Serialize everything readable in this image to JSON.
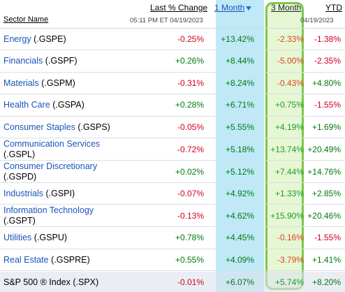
{
  "header": {
    "sector_name": "Sector Name",
    "last_pct_change": "Last % Change",
    "one_month": "1 Month",
    "three_month": "3 Month",
    "ytd": "YTD",
    "last_timestamp": "05:11 PM ET 04/19/2023",
    "ytd_date": "04/19/2023"
  },
  "colors": {
    "negative": "#d1001c",
    "positive": "#007a12",
    "one_month_highlight": "#bfe9f7",
    "three_month_highlight_border": "#7cc74e"
  },
  "rows": [
    {
      "name": "Energy",
      "ticker": "(.GSPE)",
      "last": "-0.25%",
      "m1": "+13.42%",
      "m3": "-2.33%",
      "ytd": "-1.38%"
    },
    {
      "name": "Financials",
      "ticker": "(.GSPF)",
      "last": "+0.26%",
      "m1": "+8.44%",
      "m3": "-5.00%",
      "ytd": "-2.35%"
    },
    {
      "name": "Materials",
      "ticker": "(.GSPM)",
      "last": "-0.31%",
      "m1": "+8.24%",
      "m3": "-0.43%",
      "ytd": "+4.80%"
    },
    {
      "name": "Health Care",
      "ticker": "(.GSPA)",
      "last": "+0.28%",
      "m1": "+6.71%",
      "m3": "+0.75%",
      "ytd": "-1.55%"
    },
    {
      "name": "Consumer Staples",
      "ticker": "(.GSPS)",
      "last": "-0.05%",
      "m1": "+5.55%",
      "m3": "+4.19%",
      "ytd": "+1.69%"
    },
    {
      "name": "Communication Services",
      "ticker": "(.GSPL)",
      "last": "-0.72%",
      "m1": "+5.18%",
      "m3": "+13.74%",
      "ytd": "+20.49%"
    },
    {
      "name": "Consumer Discretionary",
      "ticker": "(.GSPD)",
      "last": "+0.02%",
      "m1": "+5.12%",
      "m3": "+7.44%",
      "ytd": "+14.76%"
    },
    {
      "name": "Industrials",
      "ticker": "(.GSPI)",
      "last": "-0.07%",
      "m1": "+4.92%",
      "m3": "+1.33%",
      "ytd": "+2.85%"
    },
    {
      "name": "Information Technology",
      "ticker": "(.GSPT)",
      "last": "-0.13%",
      "m1": "+4.62%",
      "m3": "+15.90%",
      "ytd": "+20.46%"
    },
    {
      "name": "Utilities",
      "ticker": "(.GSPU)",
      "last": "+0.78%",
      "m1": "+4.45%",
      "m3": "-0.16%",
      "ytd": "-1.55%"
    },
    {
      "name": "Real Estate",
      "ticker": "(.GSPRE)",
      "last": "+0.55%",
      "m1": "+4.09%",
      "m3": "-3.79%",
      "ytd": "+1.41%"
    }
  ],
  "index_row": {
    "name": "S&P 500 ® Index",
    "ticker": "(.SPX)",
    "last": "-0.01%",
    "m1": "+6.07%",
    "m3": "+5.74%",
    "ytd": "+8.20%"
  }
}
